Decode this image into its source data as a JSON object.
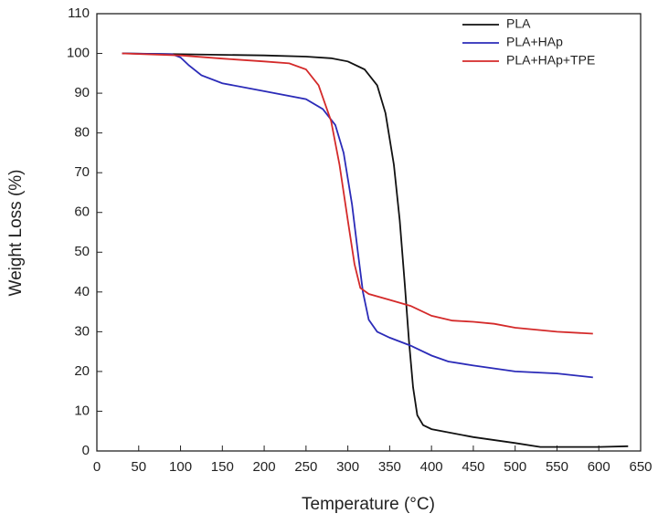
{
  "chart_data": {
    "type": "line",
    "x_label": "Temperature (°C)",
    "y_label": "Weight Loss (%)",
    "xlim": [
      0,
      650
    ],
    "ylim": [
      0,
      110
    ],
    "xticks": [
      0,
      50,
      100,
      150,
      200,
      250,
      300,
      350,
      400,
      450,
      500,
      550,
      600,
      650
    ],
    "yticks": [
      0,
      10,
      20,
      30,
      40,
      50,
      60,
      70,
      80,
      90,
      100,
      110
    ],
    "legend": "upper right",
    "series": [
      {
        "name": "PLA",
        "color": "#111111",
        "x": [
          30,
          100,
          200,
          250,
          280,
          300,
          320,
          335,
          345,
          355,
          362,
          368,
          373,
          378,
          383,
          390,
          400,
          450,
          500,
          530,
          600,
          635
        ],
        "values": [
          100,
          99.8,
          99.5,
          99.2,
          98.8,
          98,
          96,
          92,
          85,
          72,
          58,
          42,
          28,
          16,
          9,
          6.5,
          5.5,
          3.5,
          2,
          1,
          1,
          1.2
        ]
      },
      {
        "name": "PLA+HAp",
        "color": "#2b2bb8",
        "x": [
          30,
          90,
          100,
          110,
          125,
          150,
          200,
          250,
          270,
          285,
          295,
          305,
          312,
          318,
          325,
          335,
          350,
          375,
          400,
          420,
          450,
          500,
          550,
          593
        ],
        "values": [
          100,
          99.8,
          99,
          97,
          94.5,
          92.5,
          90.5,
          88.5,
          86,
          82,
          75,
          62,
          50,
          40,
          33,
          30,
          28.5,
          26.5,
          24,
          22.5,
          21.5,
          20,
          19.5,
          18.5
        ]
      },
      {
        "name": "PLA+HAp+TPE",
        "color": "#d42a2a",
        "x": [
          30,
          100,
          150,
          200,
          230,
          250,
          265,
          280,
          290,
          300,
          308,
          315,
          325,
          350,
          375,
          400,
          425,
          450,
          475,
          500,
          550,
          593
        ],
        "values": [
          100,
          99.5,
          98.7,
          98,
          97.5,
          96,
          92,
          83,
          72,
          58,
          47,
          41,
          39.5,
          38,
          36.5,
          34,
          32.8,
          32.5,
          32,
          31,
          30,
          29.5
        ]
      }
    ]
  }
}
